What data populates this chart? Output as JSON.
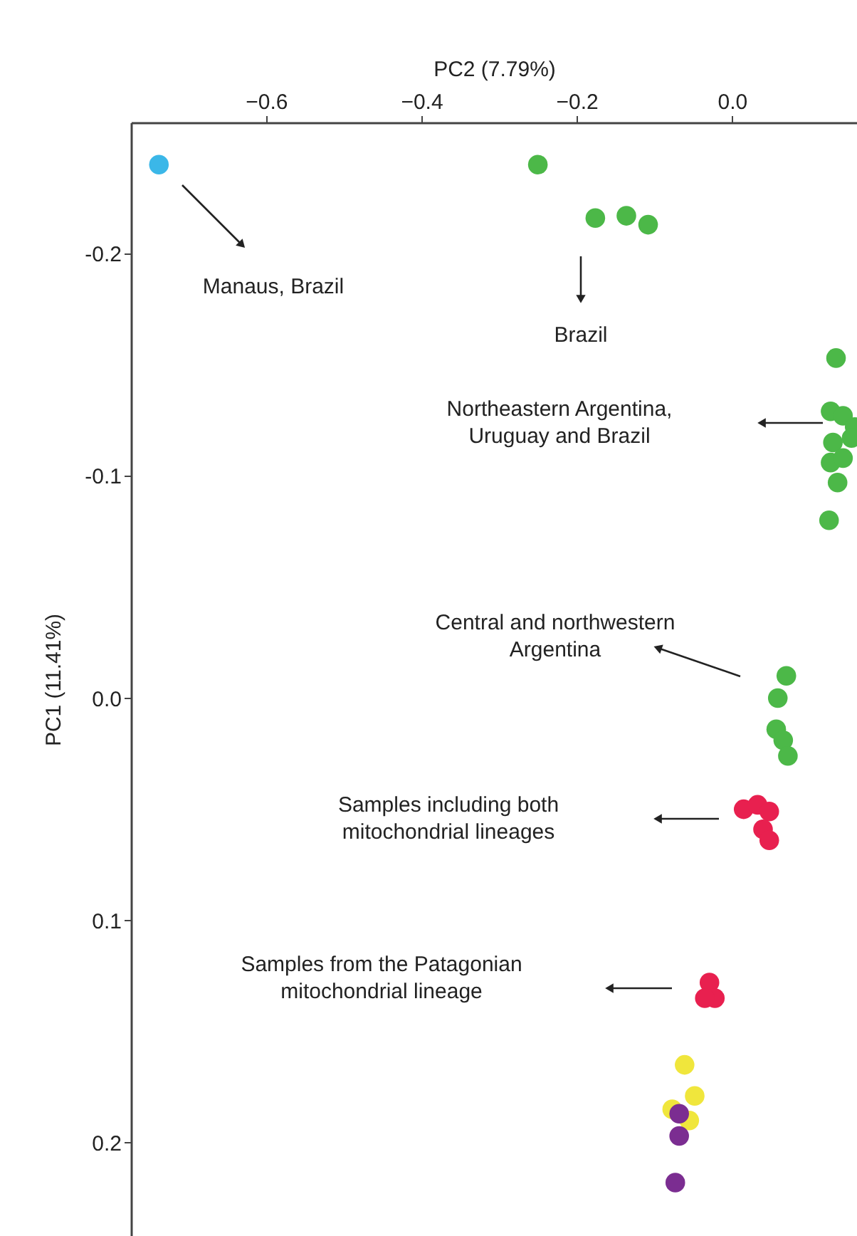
{
  "chart_data": {
    "type": "scatter",
    "xlabel": "PC2 (7.79%)",
    "ylabel": "PC1 (11.41%)",
    "xlim": [
      -0.774,
      0.161
    ],
    "ylim": [
      0.242,
      -0.259
    ],
    "xticks": [
      {
        "value": -0.6,
        "label": "−0.6"
      },
      {
        "value": -0.4,
        "label": "−0.4"
      },
      {
        "value": -0.2,
        "label": "−0.2"
      },
      {
        "value": 0,
        "label": "0.0"
      }
    ],
    "yticks": [
      -0.2,
      -0.1,
      {
        "value": 0,
        "label": "0.0"
      },
      0.1,
      0.2
    ],
    "grid": false,
    "legend": false,
    "marker": "circle",
    "series": [
      {
        "color": "#3bb7e8",
        "x": [
          -0.738
        ],
        "values": [
          -0.24
        ]
      },
      {
        "color": "#4cb848",
        "x": [
          -0.25,
          -0.176,
          -0.136,
          -0.108,
          0.134,
          0.127,
          0.143,
          0.158,
          0.13,
          0.154,
          0.127,
          0.143,
          0.136,
          0.125,
          0.07,
          0.059,
          0.057,
          0.066,
          0.072
        ],
        "values": [
          -0.24,
          -0.216,
          -0.217,
          -0.213,
          -0.153,
          -0.129,
          -0.127,
          -0.122,
          -0.115,
          -0.117,
          -0.106,
          -0.108,
          -0.097,
          -0.08,
          -0.01,
          0.0,
          0.014,
          0.019,
          0.026
        ]
      },
      {
        "color": "#e8204f",
        "x": [
          0.015,
          0.033,
          0.048,
          0.04,
          0.048,
          -0.029,
          -0.022,
          -0.035
        ],
        "values": [
          0.05,
          0.048,
          0.051,
          0.059,
          0.064,
          0.128,
          0.135,
          0.135
        ]
      },
      {
        "color": "#f0e63c",
        "x": [
          -0.061,
          -0.048,
          -0.077,
          -0.055
        ],
        "values": [
          0.165,
          0.179,
          0.185,
          0.19
        ]
      },
      {
        "color": "#7b2d91",
        "x": [
          -0.068,
          -0.068,
          -0.073
        ],
        "values": [
          0.187,
          0.197,
          0.218
        ]
      }
    ],
    "annotations": [
      "Manaus, Brazil",
      "Brazil",
      "Northeastern Argentina,\nUruguay and Brazil",
      "Central and northwestern\nArgentina",
      "Samples including both\nmitochondrial lineages",
      "Samples from the Patagonian\nmitochondrial lineage"
    ]
  }
}
